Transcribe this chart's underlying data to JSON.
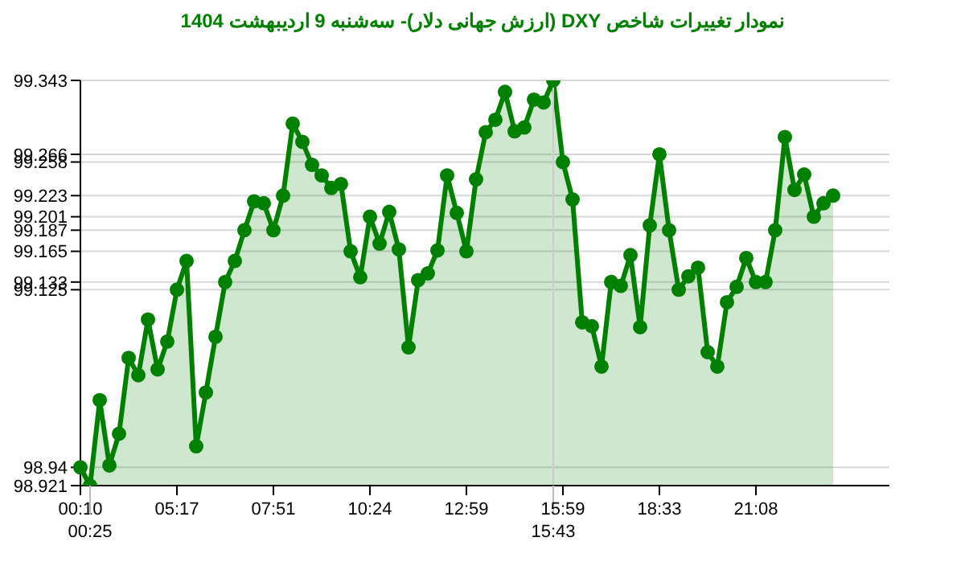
{
  "chart_data": {
    "type": "area",
    "title": "نمودار تغییرات شاخص DXY (ارزش جهانی دلار)- سه‌شنبه  9 اردیبهشت 1404",
    "categories": [
      "00:10",
      "00:25",
      null,
      null,
      null,
      null,
      null,
      null,
      null,
      null,
      "05:17",
      null,
      null,
      null,
      null,
      null,
      null,
      null,
      null,
      null,
      "07:51",
      null,
      null,
      null,
      null,
      null,
      null,
      null,
      null,
      null,
      "10:24",
      null,
      null,
      null,
      null,
      null,
      null,
      null,
      null,
      null,
      "12:59",
      null,
      null,
      null,
      null,
      null,
      null,
      null,
      null,
      "15:43",
      "15:59",
      null,
      null,
      null,
      null,
      null,
      null,
      null,
      null,
      null,
      "18:33",
      null,
      null,
      null,
      null,
      null,
      null,
      null,
      null,
      null,
      "21:08",
      null,
      null,
      null,
      null,
      null,
      null,
      null,
      null
    ],
    "series": [
      {
        "color": "#008000",
        "values": [
          98.94,
          98.921,
          99.01,
          98.942,
          98.975,
          99.054,
          99.036,
          99.094,
          99.042,
          99.071,
          99.125,
          99.155,
          98.962,
          99.018,
          99.076,
          99.133,
          99.155,
          99.187,
          99.217,
          99.215,
          99.187,
          99.223,
          99.298,
          99.279,
          99.255,
          99.244,
          99.231,
          99.235,
          99.165,
          99.138,
          99.201,
          99.173,
          99.206,
          99.167,
          99.065,
          99.135,
          99.142,
          99.166,
          99.244,
          99.205,
          99.165,
          99.24,
          99.289,
          99.302,
          99.331,
          99.29,
          99.294,
          99.323,
          99.32,
          99.343,
          99.258,
          99.219,
          99.091,
          99.087,
          99.045,
          99.133,
          99.129,
          99.161,
          99.086,
          99.192,
          99.266,
          99.187,
          99.125,
          99.139,
          99.148,
          99.06,
          99.045,
          99.112,
          99.128,
          99.158,
          99.133,
          99.133,
          99.187,
          99.284,
          99.229,
          99.245,
          99.201,
          99.215,
          99.223
        ]
      }
    ],
    "ylim": [
      98.921,
      99.343
    ],
    "yticks": [
      98.921,
      98.94,
      99.125,
      99.133,
      99.165,
      99.187,
      99.201,
      99.223,
      99.258,
      99.266,
      99.343
    ],
    "grid": "y",
    "marker": "circle",
    "line_style": "solid",
    "legend": false,
    "ref_lines": [
      {
        "axis": "x",
        "value": "15:43",
        "color": "#cccccc"
      }
    ]
  }
}
